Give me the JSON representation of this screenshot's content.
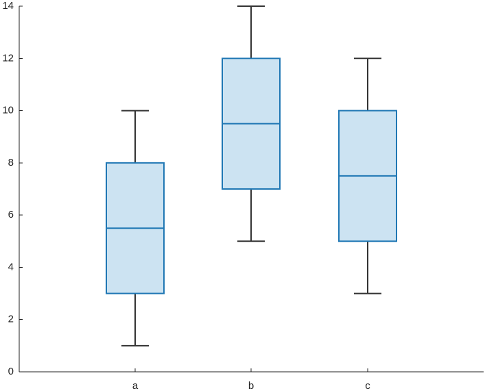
{
  "chart_data": {
    "type": "box",
    "title": "",
    "xlabel": "",
    "ylabel": "",
    "ylim": [
      0,
      14
    ],
    "yticks": [
      0,
      2,
      4,
      6,
      8,
      10,
      12,
      14
    ],
    "ytick_labels": [
      "0",
      "2",
      "4",
      "6",
      "8",
      "10",
      "12",
      "14"
    ],
    "categories": [
      "a",
      "b",
      "c"
    ],
    "boxes": [
      {
        "label": "a",
        "min": 1,
        "q1": 3,
        "median": 5.5,
        "q3": 8,
        "max": 10
      },
      {
        "label": "b",
        "min": 5,
        "q1": 7,
        "median": 9.5,
        "q3": 12,
        "max": 14
      },
      {
        "label": "c",
        "min": 3,
        "q1": 5,
        "median": 7.5,
        "q3": 10,
        "max": 12
      }
    ],
    "grid": false,
    "legend": "none",
    "colors": {
      "box_fill": "#cce3f2",
      "box_edge": "#1f77b4",
      "median": "#1f77b4",
      "whisker": "#333333",
      "axis": "#222222"
    }
  }
}
